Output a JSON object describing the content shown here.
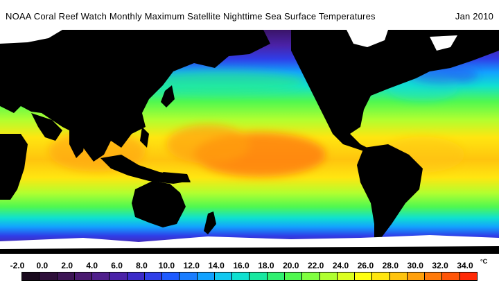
{
  "title": {
    "main": "NOAA Coral Reef Watch Monthly Maximum Satellite Nighttime Sea Surface Temperatures",
    "date": "Jan 2010"
  },
  "legend": {
    "unit": "°C",
    "ticks": [
      "-2.0",
      "0.0",
      "2.0",
      "4.0",
      "6.0",
      "8.0",
      "10.0",
      "12.0",
      "14.0",
      "16.0",
      "18.0",
      "20.0",
      "22.0",
      "24.0",
      "26.0",
      "28.0",
      "30.0",
      "32.0",
      "34.0"
    ],
    "colors": [
      "#1a0a1e",
      "#2e0f3a",
      "#3d1555",
      "#4a1a70",
      "#4f1f8c",
      "#4a22a8",
      "#3a2ac8",
      "#2f3ee8",
      "#1e5aff",
      "#1a7dff",
      "#12a2ff",
      "#12c8f0",
      "#10e0d0",
      "#18e8a0",
      "#30f070",
      "#50f850",
      "#80ff40",
      "#b0ff30",
      "#dcff20",
      "#ffff10",
      "#ffe610",
      "#ffc40e",
      "#ffa00c",
      "#ff7a0a",
      "#ff5508",
      "#ff2a06"
    ]
  },
  "colors": {
    "land": "#000000",
    "ice": "#ffffff",
    "polar": "#3a1468",
    "cold": "#2f3ee8",
    "temperate": "#30f070",
    "subtropical": "#b0ff30",
    "tropical": "#ffc40e",
    "warm_pool": "#ff7a0a"
  }
}
